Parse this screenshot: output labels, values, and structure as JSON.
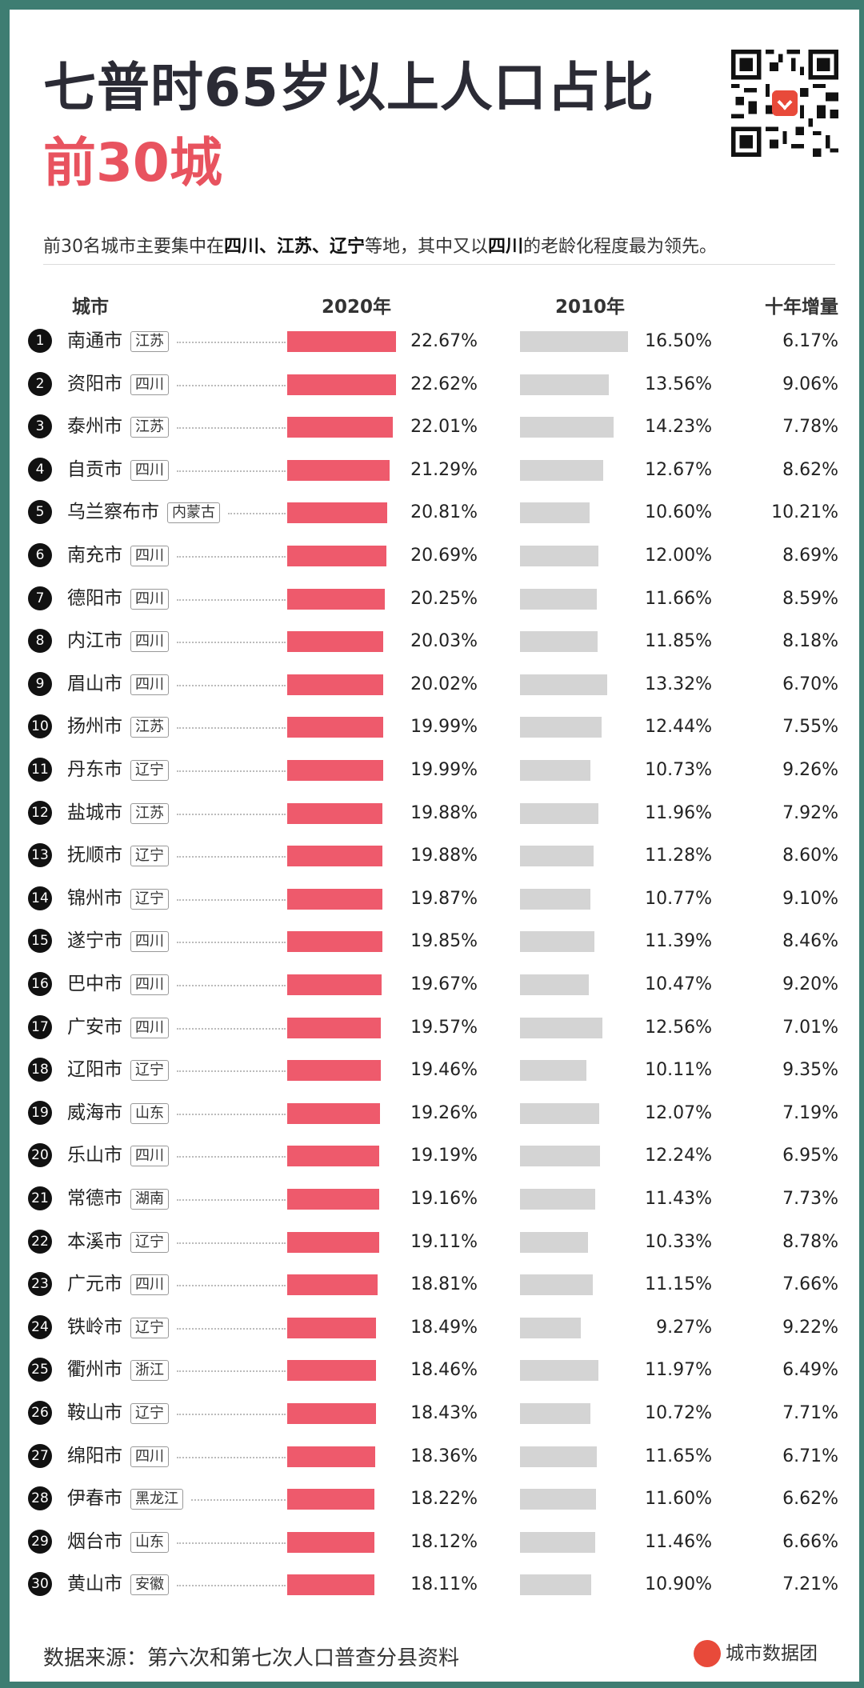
{
  "header": {
    "title": "七普时65岁以上人口占比",
    "subtitle": "前30城",
    "desc_parts": [
      "前30名城市主要集中在",
      "四川、江苏、辽宁",
      "等地，其中又以",
      "四川",
      "的老龄化程度最为领先。"
    ]
  },
  "columns": {
    "city": "城市",
    "y2020": "2020年",
    "y2010": "2010年",
    "inc": "十年增量"
  },
  "footer": {
    "source": "数据来源：第六次和第七次人口普查分县资料",
    "brand": "城市数据团"
  },
  "colors": {
    "bar2020": "#ee5a6c",
    "bar2010": "#d4d4d4",
    "title_accent": "#e8535f",
    "frame": "#3e7d72"
  },
  "chart_data": {
    "type": "bar",
    "title": "七普时65岁以上人口占比 前30城",
    "series_names": [
      "2020年",
      "2010年",
      "十年增量"
    ],
    "rows": [
      {
        "rank": "1",
        "city": "南通市",
        "prov": "江苏",
        "v2020": 22.67,
        "v2010": 16.5,
        "t2020": "22.67%",
        "t2010": "16.50%",
        "inc": "6.17%"
      },
      {
        "rank": "2",
        "city": "资阳市",
        "prov": "四川",
        "v2020": 22.62,
        "v2010": 13.56,
        "t2020": "22.62%",
        "t2010": "13.56%",
        "inc": "9.06%"
      },
      {
        "rank": "3",
        "city": "泰州市",
        "prov": "江苏",
        "v2020": 22.01,
        "v2010": 14.23,
        "t2020": "22.01%",
        "t2010": "14.23%",
        "inc": "7.78%"
      },
      {
        "rank": "4",
        "city": "自贡市",
        "prov": "四川",
        "v2020": 21.29,
        "v2010": 12.67,
        "t2020": "21.29%",
        "t2010": "12.67%",
        "inc": "8.62%"
      },
      {
        "rank": "5",
        "city": "乌兰察布市",
        "prov": "内蒙古",
        "v2020": 20.81,
        "v2010": 10.6,
        "t2020": "20.81%",
        "t2010": "10.60%",
        "inc": "10.21%"
      },
      {
        "rank": "6",
        "city": "南充市",
        "prov": "四川",
        "v2020": 20.69,
        "v2010": 12.0,
        "t2020": "20.69%",
        "t2010": "12.00%",
        "inc": "8.69%"
      },
      {
        "rank": "7",
        "city": "德阳市",
        "prov": "四川",
        "v2020": 20.25,
        "v2010": 11.66,
        "t2020": "20.25%",
        "t2010": "11.66%",
        "inc": "8.59%"
      },
      {
        "rank": "8",
        "city": "内江市",
        "prov": "四川",
        "v2020": 20.03,
        "v2010": 11.85,
        "t2020": "20.03%",
        "t2010": "11.85%",
        "inc": "8.18%"
      },
      {
        "rank": "9",
        "city": "眉山市",
        "prov": "四川",
        "v2020": 20.02,
        "v2010": 13.32,
        "t2020": "20.02%",
        "t2010": "13.32%",
        "inc": "6.70%"
      },
      {
        "rank": "10",
        "city": "扬州市",
        "prov": "江苏",
        "v2020": 19.99,
        "v2010": 12.44,
        "t2020": "19.99%",
        "t2010": "12.44%",
        "inc": "7.55%"
      },
      {
        "rank": "11",
        "city": "丹东市",
        "prov": "辽宁",
        "v2020": 19.99,
        "v2010": 10.73,
        "t2020": "19.99%",
        "t2010": "10.73%",
        "inc": "9.26%"
      },
      {
        "rank": "12",
        "city": "盐城市",
        "prov": "江苏",
        "v2020": 19.88,
        "v2010": 11.96,
        "t2020": "19.88%",
        "t2010": "11.96%",
        "inc": "7.92%"
      },
      {
        "rank": "13",
        "city": "抚顺市",
        "prov": "辽宁",
        "v2020": 19.88,
        "v2010": 11.28,
        "t2020": "19.88%",
        "t2010": "11.28%",
        "inc": "8.60%"
      },
      {
        "rank": "14",
        "city": "锦州市",
        "prov": "辽宁",
        "v2020": 19.87,
        "v2010": 10.77,
        "t2020": "19.87%",
        "t2010": "10.77%",
        "inc": "9.10%"
      },
      {
        "rank": "15",
        "city": "遂宁市",
        "prov": "四川",
        "v2020": 19.85,
        "v2010": 11.39,
        "t2020": "19.85%",
        "t2010": "11.39%",
        "inc": "8.46%"
      },
      {
        "rank": "16",
        "city": "巴中市",
        "prov": "四川",
        "v2020": 19.67,
        "v2010": 10.47,
        "t2020": "19.67%",
        "t2010": "10.47%",
        "inc": "9.20%"
      },
      {
        "rank": "17",
        "city": "广安市",
        "prov": "四川",
        "v2020": 19.57,
        "v2010": 12.56,
        "t2020": "19.57%",
        "t2010": "12.56%",
        "inc": "7.01%"
      },
      {
        "rank": "18",
        "city": "辽阳市",
        "prov": "辽宁",
        "v2020": 19.46,
        "v2010": 10.11,
        "t2020": "19.46%",
        "t2010": "10.11%",
        "inc": "9.35%"
      },
      {
        "rank": "19",
        "city": "威海市",
        "prov": "山东",
        "v2020": 19.26,
        "v2010": 12.07,
        "t2020": "19.26%",
        "t2010": "12.07%",
        "inc": "7.19%"
      },
      {
        "rank": "20",
        "city": "乐山市",
        "prov": "四川",
        "v2020": 19.19,
        "v2010": 12.24,
        "t2020": "19.19%",
        "t2010": "12.24%",
        "inc": "6.95%"
      },
      {
        "rank": "21",
        "city": "常德市",
        "prov": "湖南",
        "v2020": 19.16,
        "v2010": 11.43,
        "t2020": "19.16%",
        "t2010": "11.43%",
        "inc": "7.73%"
      },
      {
        "rank": "22",
        "city": "本溪市",
        "prov": "辽宁",
        "v2020": 19.11,
        "v2010": 10.33,
        "t2020": "19.11%",
        "t2010": "10.33%",
        "inc": "8.78%"
      },
      {
        "rank": "23",
        "city": "广元市",
        "prov": "四川",
        "v2020": 18.81,
        "v2010": 11.15,
        "t2020": "18.81%",
        "t2010": "11.15%",
        "inc": "7.66%"
      },
      {
        "rank": "24",
        "city": "铁岭市",
        "prov": "辽宁",
        "v2020": 18.49,
        "v2010": 9.27,
        "t2020": "18.49%",
        "t2010": "9.27%",
        "inc": "9.22%"
      },
      {
        "rank": "25",
        "city": "衢州市",
        "prov": "浙江",
        "v2020": 18.46,
        "v2010": 11.97,
        "t2020": "18.46%",
        "t2010": "11.97%",
        "inc": "6.49%"
      },
      {
        "rank": "26",
        "city": "鞍山市",
        "prov": "辽宁",
        "v2020": 18.43,
        "v2010": 10.72,
        "t2020": "18.43%",
        "t2010": "10.72%",
        "inc": "7.71%"
      },
      {
        "rank": "27",
        "city": "绵阳市",
        "prov": "四川",
        "v2020": 18.36,
        "v2010": 11.65,
        "t2020": "18.36%",
        "t2010": "11.65%",
        "inc": "6.71%"
      },
      {
        "rank": "28",
        "city": "伊春市",
        "prov": "黑龙江",
        "v2020": 18.22,
        "v2010": 11.6,
        "t2020": "18.22%",
        "t2010": "11.60%",
        "inc": "6.62%"
      },
      {
        "rank": "29",
        "city": "烟台市",
        "prov": "山东",
        "v2020": 18.12,
        "v2010": 11.46,
        "t2020": "18.12%",
        "t2010": "11.46%",
        "inc": "6.66%"
      },
      {
        "rank": "30",
        "city": "黄山市",
        "prov": "安徽",
        "v2020": 18.11,
        "v2010": 10.9,
        "t2020": "18.11%",
        "t2010": "10.90%",
        "inc": "7.21%"
      }
    ]
  }
}
